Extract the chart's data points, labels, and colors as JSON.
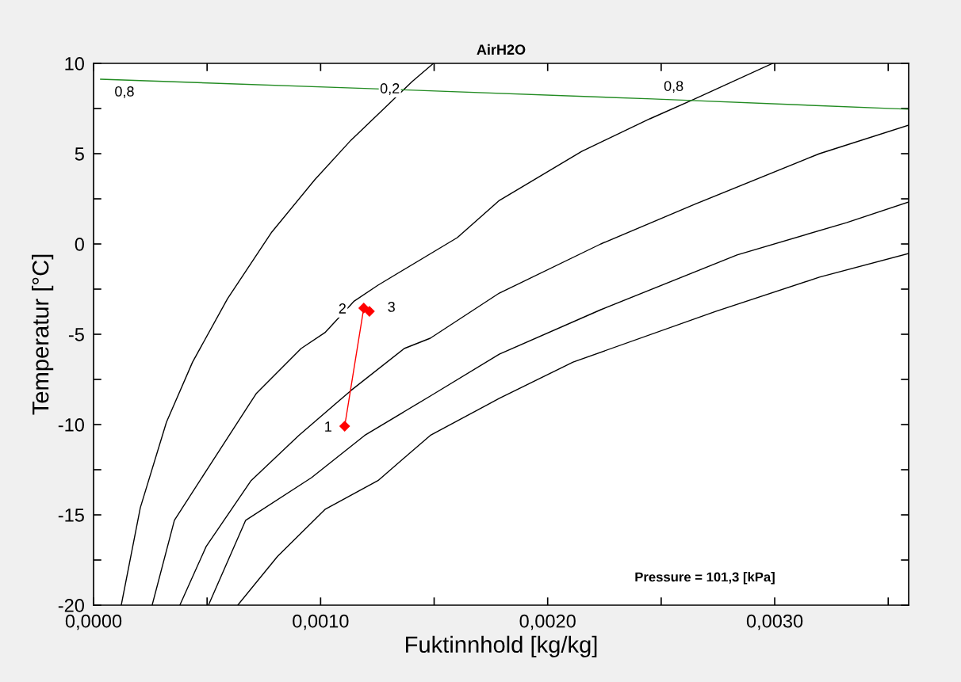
{
  "chart_data": {
    "type": "line",
    "title": "AirH2O",
    "xlabel": "Fuktinnhold [kg/kg]",
    "ylabel": "Temperatur [°C]",
    "xlim": [
      0,
      0.00359
    ],
    "ylim": [
      -20,
      10
    ],
    "xticks": [
      {
        "value": 0,
        "label": "0,0000"
      },
      {
        "value": 0.0005,
        "label": null
      },
      {
        "value": 0.001,
        "label": "0,0010"
      },
      {
        "value": 0.0015,
        "label": null
      },
      {
        "value": 0.002,
        "label": "0,0020"
      },
      {
        "value": 0.0025,
        "label": null
      },
      {
        "value": 0.003,
        "label": "0,0030"
      },
      {
        "value": 0.0035,
        "label": null
      }
    ],
    "yticks": [
      -20,
      {
        "value": -17.5,
        "label": null
      },
      -15,
      {
        "value": -12.5,
        "label": null
      },
      -10,
      {
        "value": -7.5,
        "label": null
      },
      -5,
      {
        "value": -2.5,
        "label": null
      },
      0,
      {
        "value": 2.5,
        "label": null
      },
      5,
      {
        "value": 7.5,
        "label": null
      },
      10
    ],
    "grid": false,
    "legend": false,
    "marker": "none",
    "line_style": "solid",
    "series": [
      {
        "color": "#000000",
        "x": [
          0.000122,
          0.000206,
          0.000321,
          0.000436,
          0.00059,
          0.000785,
          0.000974,
          0.001134,
          0.001305,
          0.001403,
          0.001497
        ],
        "values": [
          -20,
          -14.6,
          -9.87,
          -6.54,
          -3.03,
          0.66,
          3.55,
          5.75,
          7.81,
          8.99,
          10
        ]
      },
      {
        "color": "#000000",
        "x": [
          0.000258,
          0.000356,
          0.000506,
          0.000716,
          0.000914,
          0.001019,
          0.001148,
          0.001253,
          0.001602,
          0.001787,
          0.00215,
          0.00245,
          0.002642,
          0.002991
        ],
        "values": [
          -20,
          -15.3,
          -12.37,
          -8.29,
          -5.79,
          -4.91,
          -3.16,
          -2.28,
          0.35,
          2.41,
          5.13,
          6.93,
          8.0,
          10
        ]
      },
      {
        "color": "#000000",
        "x": [
          0.00038,
          0.000496,
          0.000694,
          0.000904,
          0.001134,
          0.001368,
          0.001483,
          0.001787,
          0.002234,
          0.002656,
          0.003197,
          0.00359
        ],
        "values": [
          -20,
          -16.75,
          -13.1,
          -10.6,
          -8.11,
          -5.79,
          -5.22,
          -2.72,
          0,
          2.24,
          5,
          6.58
        ]
      },
      {
        "color": "#000000",
        "x": [
          0.000506,
          0.00067,
          0.00096,
          0.001194,
          0.001483,
          0.001787,
          0.002234,
          0.002834,
          0.003316,
          0.00359
        ],
        "values": [
          -20,
          -15.3,
          -12.94,
          -10.6,
          -8.42,
          -6.1,
          -3.64,
          -0.61,
          1.18,
          2.32
        ]
      },
      {
        "color": "#000000",
        "x": [
          0.000635,
          0.00081,
          0.001019,
          0.001253,
          0.001483,
          0.001787,
          0.002112,
          0.00274,
          0.003197,
          0.00359
        ],
        "values": [
          -20,
          -17.3,
          -14.7,
          -13.1,
          -10.6,
          -8.55,
          -6.54,
          -3.73,
          -1.84,
          -0.53
        ]
      },
      {
        "color": "#228b22",
        "x": [
          3.1e-05,
          0.001218,
          0.002461,
          0.00359
        ],
        "values": [
          9.12,
          8.6,
          8.03,
          7.46
        ]
      },
      {
        "color": "#ff0000",
        "marker": "diamond",
        "x": [
          0.001106,
          0.00119,
          0.001215
        ],
        "values": [
          -10.09,
          -3.55,
          -3.73
        ]
      }
    ],
    "annotations": [
      {
        "text": "0,8",
        "x": 0.000136,
        "y": 8.38
      },
      {
        "text": "0,2",
        "x": 0.001305,
        "y": 8.55
      },
      {
        "text": "0,8",
        "x": 0.002555,
        "y": 8.68
      },
      {
        "text": "1",
        "x": 0.001033,
        "y": -10.18
      },
      {
        "text": "2",
        "x": 0.001096,
        "y": -3.64
      },
      {
        "text": "3",
        "x": 0.001312,
        "y": -3.55
      },
      "Pressure = 101,3 [kPa]"
    ]
  }
}
